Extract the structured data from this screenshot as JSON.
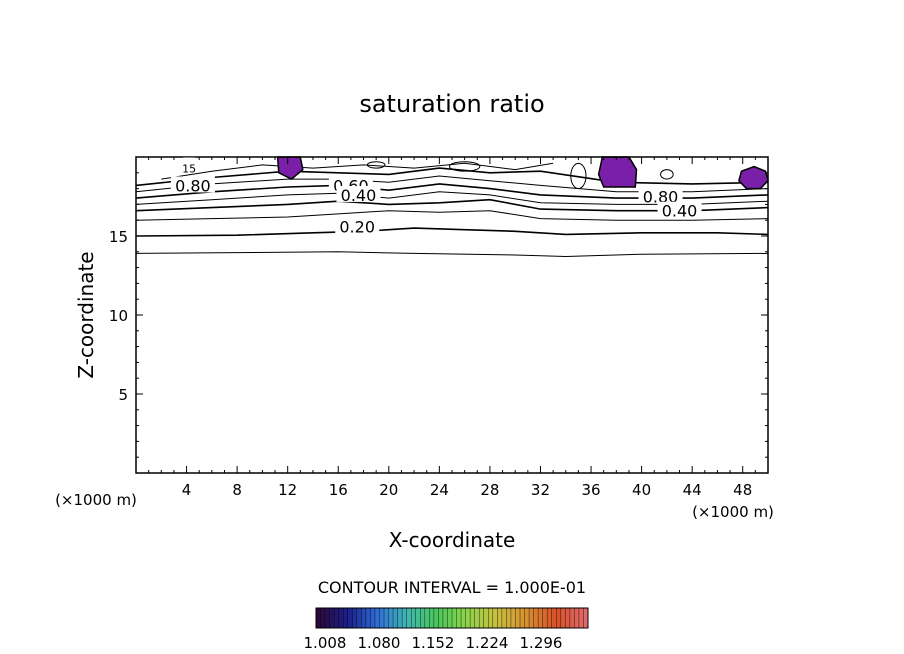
{
  "chart_data": {
    "type": "contour",
    "title": "saturation ratio",
    "xlabel": "X-coordinate",
    "ylabel": "Z-coordinate",
    "x_unit_left": "(×1000 m)",
    "x_unit_right": "(×1000 m)",
    "xlim": [
      0,
      50
    ],
    "ylim": [
      0,
      20
    ],
    "x_ticks": [
      4,
      8,
      12,
      16,
      20,
      24,
      28,
      32,
      36,
      40,
      44,
      48
    ],
    "y_ticks": [
      5,
      10,
      15
    ],
    "contour_interval_text": "CONTOUR INTERVAL = 1.000E-01",
    "contour_labels": [
      {
        "text": "0.80",
        "x": 4.5,
        "y": 18.2
      },
      {
        "text": "0.60",
        "x": 17.0,
        "y": 18.2
      },
      {
        "text": "0.40",
        "x": 17.6,
        "y": 17.6
      },
      {
        "text": "0.20",
        "x": 17.5,
        "y": 15.6
      },
      {
        "text": "0.80",
        "x": 41.5,
        "y": 17.5
      },
      {
        "text": "0.40",
        "x": 43.0,
        "y": 16.6
      },
      {
        "text": "15",
        "x": 4.2,
        "y": 19.4
      }
    ],
    "colorbar": {
      "tick_labels": [
        "1.008",
        "1.080",
        "1.152",
        "1.224",
        "1.296"
      ],
      "colors": [
        "#2a0a3a",
        "#1c1f8a",
        "#2f6fd8",
        "#3fb8b0",
        "#49c85a",
        "#8fd44a",
        "#c8c040",
        "#d89030",
        "#d85028",
        "#e06a6a"
      ]
    },
    "supersaturated_regions_color": "#7a1fa8"
  }
}
